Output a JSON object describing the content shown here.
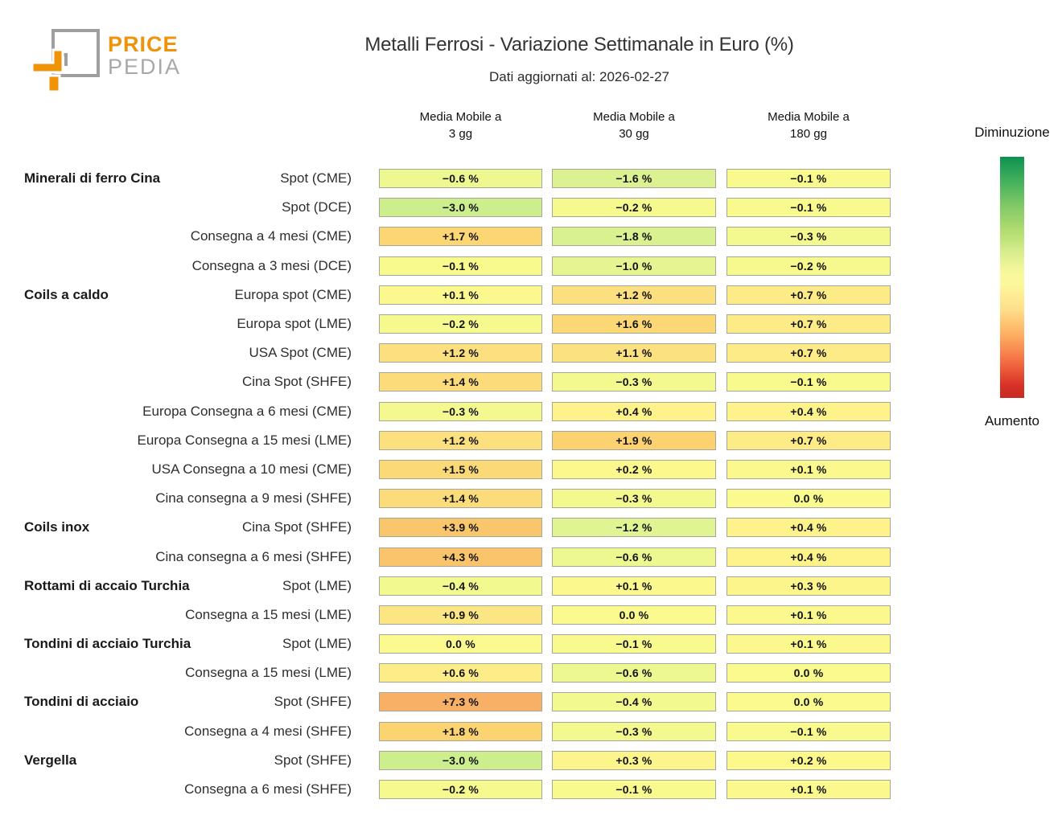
{
  "header": {
    "logo_line1": "PRICE",
    "logo_line2": "PEDIA",
    "title": "Metalli Ferrosi - Variazione Settimanale in Euro (%)",
    "subtitle": "Dati aggiornati al: 2026-02-27"
  },
  "legend": {
    "top_label": "Diminuzione",
    "bottom_label": "Aumento",
    "gradient_stops": [
      "#0d9150 0%",
      "#43b05c 10%",
      "#7fc866 20%",
      "#aedb6f 30%",
      "#d9ee8f 40%",
      "#f7f89c 48%",
      "#fdf79c 53%",
      "#fee08b 63%",
      "#fdae61 74%",
      "#f46d43 85%",
      "#d73027 95%",
      "#c62a21 100%"
    ]
  },
  "colors": {
    "accent_orange": "#ef9309",
    "logo_gray": "#a8a8a8",
    "cell_border": "#a6a69a"
  },
  "chart_data": {
    "type": "heatmap",
    "title": "Metalli Ferrosi - Variazione Settimanale in Euro (%)",
    "subtitle": "Dati aggiornati al: 2026-02-27",
    "value_unit": "%",
    "columns": [
      {
        "top": "Media Mobile a",
        "bottom": "3 gg"
      },
      {
        "top": "Media Mobile a",
        "bottom": "30 gg"
      },
      {
        "top": "Media Mobile a",
        "bottom": "180 gg"
      }
    ],
    "rows": [
      {
        "group": "Minerali di ferro Cina",
        "label": "Spot (CME)",
        "values": [
          -0.6,
          -1.6,
          -0.1
        ]
      },
      {
        "group": "",
        "label": "Spot (DCE)",
        "values": [
          -3.0,
          -0.2,
          -0.1
        ]
      },
      {
        "group": "",
        "label": "Consegna a 4 mesi (CME)",
        "values": [
          1.7,
          -1.8,
          -0.3
        ]
      },
      {
        "group": "",
        "label": "Consegna a 3 mesi (DCE)",
        "values": [
          -0.1,
          -1.0,
          -0.2
        ]
      },
      {
        "group": "Coils a caldo",
        "label": "Europa spot (CME)",
        "values": [
          0.1,
          1.2,
          0.7
        ]
      },
      {
        "group": "",
        "label": "Europa spot (LME)",
        "values": [
          -0.2,
          1.6,
          0.7
        ]
      },
      {
        "group": "",
        "label": "USA Spot (CME)",
        "values": [
          1.2,
          1.1,
          0.7
        ]
      },
      {
        "group": "",
        "label": "Cina Spot (SHFE)",
        "values": [
          1.4,
          -0.3,
          -0.1
        ]
      },
      {
        "group": "",
        "label": "Europa Consegna a 6 mesi (CME)",
        "values": [
          -0.3,
          0.4,
          0.4
        ]
      },
      {
        "group": "",
        "label": "Europa Consegna a 15 mesi (LME)",
        "values": [
          1.2,
          1.9,
          0.7
        ]
      },
      {
        "group": "",
        "label": "USA Consegna a 10 mesi (CME)",
        "values": [
          1.5,
          0.2,
          0.1
        ]
      },
      {
        "group": "",
        "label": "Cina consegna a 9 mesi (SHFE)",
        "values": [
          1.4,
          -0.3,
          0.0
        ]
      },
      {
        "group": "Coils inox",
        "label": "Cina Spot (SHFE)",
        "values": [
          3.9,
          -1.2,
          0.4
        ]
      },
      {
        "group": "",
        "label": "Cina consegna a 6 mesi (SHFE)",
        "values": [
          4.3,
          -0.6,
          0.4
        ]
      },
      {
        "group": "Rottami di accaio Turchia",
        "label": "Spot (LME)",
        "values": [
          -0.4,
          0.1,
          0.3
        ]
      },
      {
        "group": "",
        "label": "Consegna a 15 mesi (LME)",
        "values": [
          0.9,
          0.0,
          0.1
        ]
      },
      {
        "group": "Tondini di acciaio Turchia",
        "label": "Spot (LME)",
        "values": [
          0.0,
          -0.1,
          0.1
        ]
      },
      {
        "group": "",
        "label": "Consegna a 15 mesi (LME)",
        "values": [
          0.6,
          -0.6,
          0.0
        ]
      },
      {
        "group": "Tondini di acciaio",
        "label": "Spot (SHFE)",
        "values": [
          7.3,
          -0.4,
          0.0
        ]
      },
      {
        "group": "",
        "label": "Consegna a 4 mesi (SHFE)",
        "values": [
          1.8,
          -0.3,
          -0.1
        ]
      },
      {
        "group": "Vergella",
        "label": "Spot (SHFE)",
        "values": [
          -3.0,
          0.3,
          0.2
        ]
      },
      {
        "group": "",
        "label": "Consegna a 6 mesi (SHFE)",
        "values": [
          -0.2,
          -0.1,
          0.1
        ]
      }
    ],
    "colormap_anchors": [
      [
        -3.5,
        "#c8ec88"
      ],
      [
        -3.0,
        "#cdee8c"
      ],
      [
        -1.8,
        "#d9f191"
      ],
      [
        -1.2,
        "#e1f493"
      ],
      [
        -0.8,
        "#eaf691"
      ],
      [
        -0.4,
        "#f2f98f"
      ],
      [
        -0.1,
        "#f8fa8e"
      ],
      [
        0.0,
        "#fafa8e"
      ],
      [
        0.2,
        "#fcf88c"
      ],
      [
        0.5,
        "#fdf089"
      ],
      [
        0.8,
        "#fce885"
      ],
      [
        1.2,
        "#fcdf7f"
      ],
      [
        1.5,
        "#fbd977"
      ],
      [
        1.9,
        "#fbd26f"
      ],
      [
        2.5,
        "#facb6d"
      ],
      [
        4.3,
        "#f9c46b"
      ],
      [
        7.3,
        "#f7b065"
      ]
    ],
    "legend": {
      "top": "Diminuzione",
      "bottom": "Aumento",
      "position": "right"
    }
  }
}
